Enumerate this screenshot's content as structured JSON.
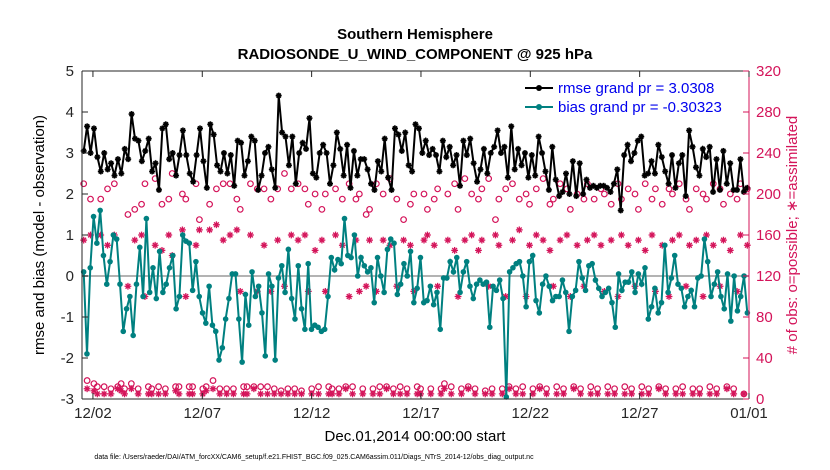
{
  "chart_data": {
    "type": "line",
    "title": "Southern Hemisphere",
    "subtitle": "RADIOSONDE_U_WIND_COMPONENT @ 925 hPa",
    "xlabel": "Dec.01,2014 00:00:00 start",
    "ylabel_left": "rmse and bias (model - observation)",
    "ylabel_right": "# of obs: o=possible; ∗=assimilated",
    "x_ticks": [
      "12/02",
      "12/07",
      "12/12",
      "12/17",
      "12/22",
      "12/27",
      "01/01"
    ],
    "x_tick_days": [
      1,
      6,
      11,
      16,
      21,
      26,
      31
    ],
    "xlim": [
      0.5,
      31
    ],
    "ylim_left": [
      -3,
      5
    ],
    "yticks_left": [
      "-3",
      "-2",
      "-1",
      "0",
      "1",
      "2",
      "3",
      "4",
      "5"
    ],
    "ylim_right": [
      0,
      320
    ],
    "yticks_right": [
      "0",
      "40",
      "80",
      "120",
      "160",
      "200",
      "240",
      "280",
      "320"
    ],
    "legend_position": "top-right",
    "colors": {
      "rmse": "#000000",
      "bias": "#008080",
      "obs": "#d4145a",
      "zero_line": "#b3b3b3"
    },
    "series": [
      {
        "name": "rmse grand pr = 3.0308",
        "axis": "left",
        "values": [
          3.05,
          3.65,
          3.0,
          3.6,
          2.9,
          2.55,
          3.0,
          2.6,
          2.75,
          2.45,
          2.85,
          2.5,
          3.1,
          2.85,
          3.95,
          3.35,
          3.3,
          2.8,
          3.05,
          3.35,
          2.55,
          2.75,
          2.1,
          3.6,
          3.7,
          2.85,
          3.0,
          2.45,
          2.95,
          3.55,
          2.95,
          2.5,
          2.3,
          2.95,
          3.6,
          2.8,
          2.15,
          3.7,
          3.45,
          2.7,
          2.55,
          3.0,
          2.5,
          2.95,
          2.2,
          3.3,
          3.25,
          2.45,
          2.8,
          3.4,
          3.3,
          2.1,
          2.45,
          3.0,
          3.15,
          2.6,
          2.15,
          4.4,
          3.5,
          3.4,
          2.7,
          3.4,
          2.25,
          3.0,
          3.25,
          3.1,
          3.85,
          2.5,
          2.4,
          3.0,
          3.2,
          3.0,
          2.25,
          2.7,
          3.5,
          3.1,
          2.45,
          3.2,
          2.15,
          3.05,
          2.45,
          2.85,
          2.85,
          2.6,
          2.25,
          2.1,
          2.8,
          2.55,
          3.35,
          2.4,
          2.1,
          3.6,
          3.45,
          3.05,
          3.5,
          2.7,
          2.55,
          3.7,
          3.6,
          3.0,
          3.3,
          2.95,
          3.1,
          2.95,
          2.55,
          3.3,
          2.9,
          3.15,
          2.7,
          2.95,
          2.2,
          3.3,
          2.95,
          3.35,
          2.75,
          2.3,
          2.6,
          3.1,
          2.5,
          3.0,
          3.15,
          3.55,
          3.0,
          3.15,
          2.4,
          3.65,
          2.6,
          3.1,
          2.7,
          3.0,
          2.4,
          2.95,
          2.45,
          3.4,
          3.0,
          2.55,
          2.1,
          3.15,
          2.35,
          1.95,
          2.05,
          2.5,
          2.0,
          2.8,
          1.95,
          2.75,
          2.0,
          2.35,
          2.15,
          2.2,
          2.15,
          2.2,
          2.2,
          2.15,
          2.05,
          2.25,
          2.6,
          1.6,
          2.95,
          3.2,
          2.8,
          3.0,
          3.3,
          3.4,
          2.45,
          2.5,
          2.8,
          2.5,
          3.2,
          2.9,
          2.55,
          2.25,
          2.95,
          2.15,
          2.75,
          2.95,
          1.95,
          3.55,
          3.15,
          2.65,
          2.45,
          3.1,
          2.9,
          3.15,
          2.05,
          2.85,
          2.1,
          3.05,
          2.25,
          2.75,
          2.1,
          2.1,
          2.85,
          2.05,
          2.15
        ]
      },
      {
        "name": "bias grand pr = -0.30323",
        "axis": "left",
        "values": [
          0.1,
          -1.9,
          0.2,
          1.45,
          0.8,
          1.6,
          0.5,
          -0.2,
          0.35,
          1.0,
          0.9,
          -0.2,
          -1.35,
          -0.8,
          -0.5,
          -1.45,
          -0.2,
          0.7,
          -0.5,
          1.4,
          -0.4,
          0.2,
          -0.55,
          0.6,
          -0.4,
          -0.2,
          0.2,
          0.5,
          -0.8,
          -0.5,
          1.0,
          0.85,
          0.8,
          -0.35,
          0.35,
          -0.5,
          -0.9,
          -1.15,
          -0.25,
          -1.2,
          -1.35,
          -2.05,
          -1.75,
          -1.05,
          -0.55,
          0.05,
          0.05,
          -1.05,
          -2.1,
          -0.45,
          -1.2,
          0.1,
          -0.5,
          -0.25,
          -0.9,
          -1.95,
          0.05,
          -0.25,
          -2.05,
          -0.05,
          0.25,
          -0.4,
          0.65,
          -0.55,
          -1.05,
          0.25,
          -0.8,
          -1.3,
          0.3,
          -1.3,
          -1.2,
          -1.25,
          -1.35,
          -1.3,
          -0.5,
          0.45,
          0.15,
          0.4,
          0.3,
          1.4,
          0.5,
          0.45,
          1.0,
          0.0,
          0.45,
          0.25,
          0.1,
          0.2,
          -0.65,
          0.45,
          0.0,
          -0.4,
          0.65,
          0.9,
          0.8,
          -0.45,
          -0.2,
          0.3,
          0.0,
          0.6,
          -0.65,
          -0.3,
          0.45,
          -0.65,
          -0.6,
          -0.25,
          -0.7,
          -0.4,
          -1.3,
          -0.05,
          -0.05,
          0.35,
          0.1,
          0.45,
          -0.4,
          0.1,
          0.35,
          -0.25,
          -0.55,
          -0.2,
          -0.1,
          -0.2,
          -0.15,
          -1.25,
          -0.25,
          -0.35,
          -0.1,
          -0.55,
          -2.95,
          0.1,
          0.2,
          0.3,
          0.35,
          0.0,
          -0.75,
          0.35,
          0.5,
          -0.6,
          -0.9,
          -0.2,
          0.0,
          -0.25,
          -0.6,
          -0.5,
          -0.5,
          -0.1,
          -0.4,
          -1.35,
          -0.5,
          -0.35,
          0.35,
          -0.05,
          -0.35,
          0.25,
          0.3,
          -0.1,
          -0.3,
          -0.5,
          -0.4,
          -0.3,
          -0.65,
          -1.25,
          0.05,
          -0.35,
          -0.15,
          -0.15,
          0.1,
          -0.4,
          0.05,
          -0.2,
          0.2,
          -1.05,
          -0.75,
          -0.3,
          -0.9,
          -0.65,
          0.75,
          -0.4,
          -0.05,
          0.5,
          -0.2,
          -0.3,
          -0.75,
          -0.5,
          -0.35,
          -0.75,
          -0.05,
          0.0,
          0.9,
          0.35,
          -0.5,
          -0.2,
          0.1,
          -0.5,
          -0.8,
          0.05,
          -1.1,
          0.0,
          -0.85,
          -0.5,
          0.0,
          -0.9
        ]
      }
    ],
    "obs_possible": {
      "axis": "right",
      "marker": "circle",
      "values": [
        210,
        18,
        195,
        15,
        12,
        195,
        12,
        205,
        10,
        210,
        12,
        15,
        10,
        180,
        15,
        185,
        10,
        190,
        210,
        12,
        10,
        215,
        12,
        190,
        10,
        195,
        220,
        12,
        12,
        200,
        195,
        12,
        12,
        210,
        175,
        10,
        12,
        190,
        18,
        205,
        10,
        210,
        10,
        210,
        10,
        195,
        185,
        12,
        12,
        210,
        12,
        205,
        12,
        205,
        12,
        195,
        10,
        205,
        8,
        220,
        10,
        205,
        10,
        210,
        8,
        205,
        190,
        10,
        200,
        12,
        185,
        200,
        12,
        10,
        205,
        10,
        195,
        12,
        210,
        12,
        195,
        200,
        10,
        180,
        185,
        10,
        210,
        12,
        200,
        12,
        215,
        10,
        195,
        12,
        175,
        10,
        190,
        200,
        12,
        10,
        200,
        185,
        10,
        195,
        205,
        10,
        15,
        200,
        12,
        210,
        185,
        10,
        215,
        12,
        200,
        10,
        195,
        205,
        8,
        215,
        10,
        175,
        195,
        10,
        205,
        12,
        210,
        10,
        195,
        12,
        200,
        190,
        10,
        205,
        12,
        215,
        10,
        190,
        195,
        12,
        210,
        10,
        205,
        185,
        12,
        200,
        10,
        195,
        210,
        12,
        195,
        10,
        205,
        200,
        12,
        190,
        10,
        210,
        195,
        12,
        205,
        10,
        200,
        185,
        12,
        210,
        10,
        195,
        205,
        12,
        190,
        10,
        205,
        200,
        10,
        210,
        12,
        195,
        185,
        10,
        205,
        10,
        200,
        195,
        12,
        210,
        10,
        205,
        190,
        12,
        200,
        10,
        195,
        210,
        5,
        205
      ]
    },
    "obs_assimilated": {
      "axis": "right",
      "marker": "asterisk",
      "values": [
        155,
        10,
        160,
        8,
        5,
        160,
        5,
        150,
        5,
        160,
        10,
        8,
        5,
        110,
        10,
        155,
        5,
        160,
        100,
        5,
        5,
        150,
        5,
        145,
        5,
        160,
        140,
        8,
        5,
        165,
        100,
        5,
        5,
        150,
        165,
        5,
        8,
        165,
        10,
        170,
        5,
        155,
        5,
        160,
        5,
        165,
        105,
        5,
        5,
        160,
        10,
        105,
        5,
        150,
        5,
        105,
        5,
        155,
        5,
        110,
        5,
        160,
        5,
        155,
        5,
        160,
        105,
        5,
        145,
        5,
        155,
        105,
        5,
        5,
        160,
        5,
        150,
        10,
        100,
        5,
        155,
        105,
        5,
        110,
        155,
        5,
        105,
        5,
        155,
        10,
        150,
        5,
        110,
        5,
        155,
        5,
        150,
        105,
        5,
        5,
        155,
        160,
        5,
        150,
        110,
        5,
        10,
        155,
        5,
        145,
        100,
        5,
        155,
        10,
        160,
        5,
        145,
        155,
        5,
        110,
        5,
        160,
        150,
        5,
        100,
        10,
        155,
        5,
        165,
        5,
        100,
        150,
        5,
        160,
        10,
        155,
        5,
        145,
        110,
        5,
        155,
        5,
        160,
        100,
        10,
        150,
        5,
        110,
        155,
        5,
        160,
        5,
        150,
        105,
        5,
        155,
        5,
        100,
        160,
        5,
        150,
        5,
        110,
        155,
        5,
        145,
        5,
        160,
        105,
        10,
        150,
        5,
        100,
        155,
        5,
        160,
        5,
        110,
        150,
        5,
        155,
        5,
        100,
        160,
        5,
        150,
        5,
        110,
        155,
        10,
        145,
        5,
        105,
        160,
        5,
        150
      ]
    },
    "footnote": "data file: /Users/raeder/DAI/ATM_forcXX/CAM6_setup/f.e21.FHIST_BGC.f09_025.CAM6assim.011/Diags_NTrS_2014-12/obs_diag_output.nc"
  }
}
